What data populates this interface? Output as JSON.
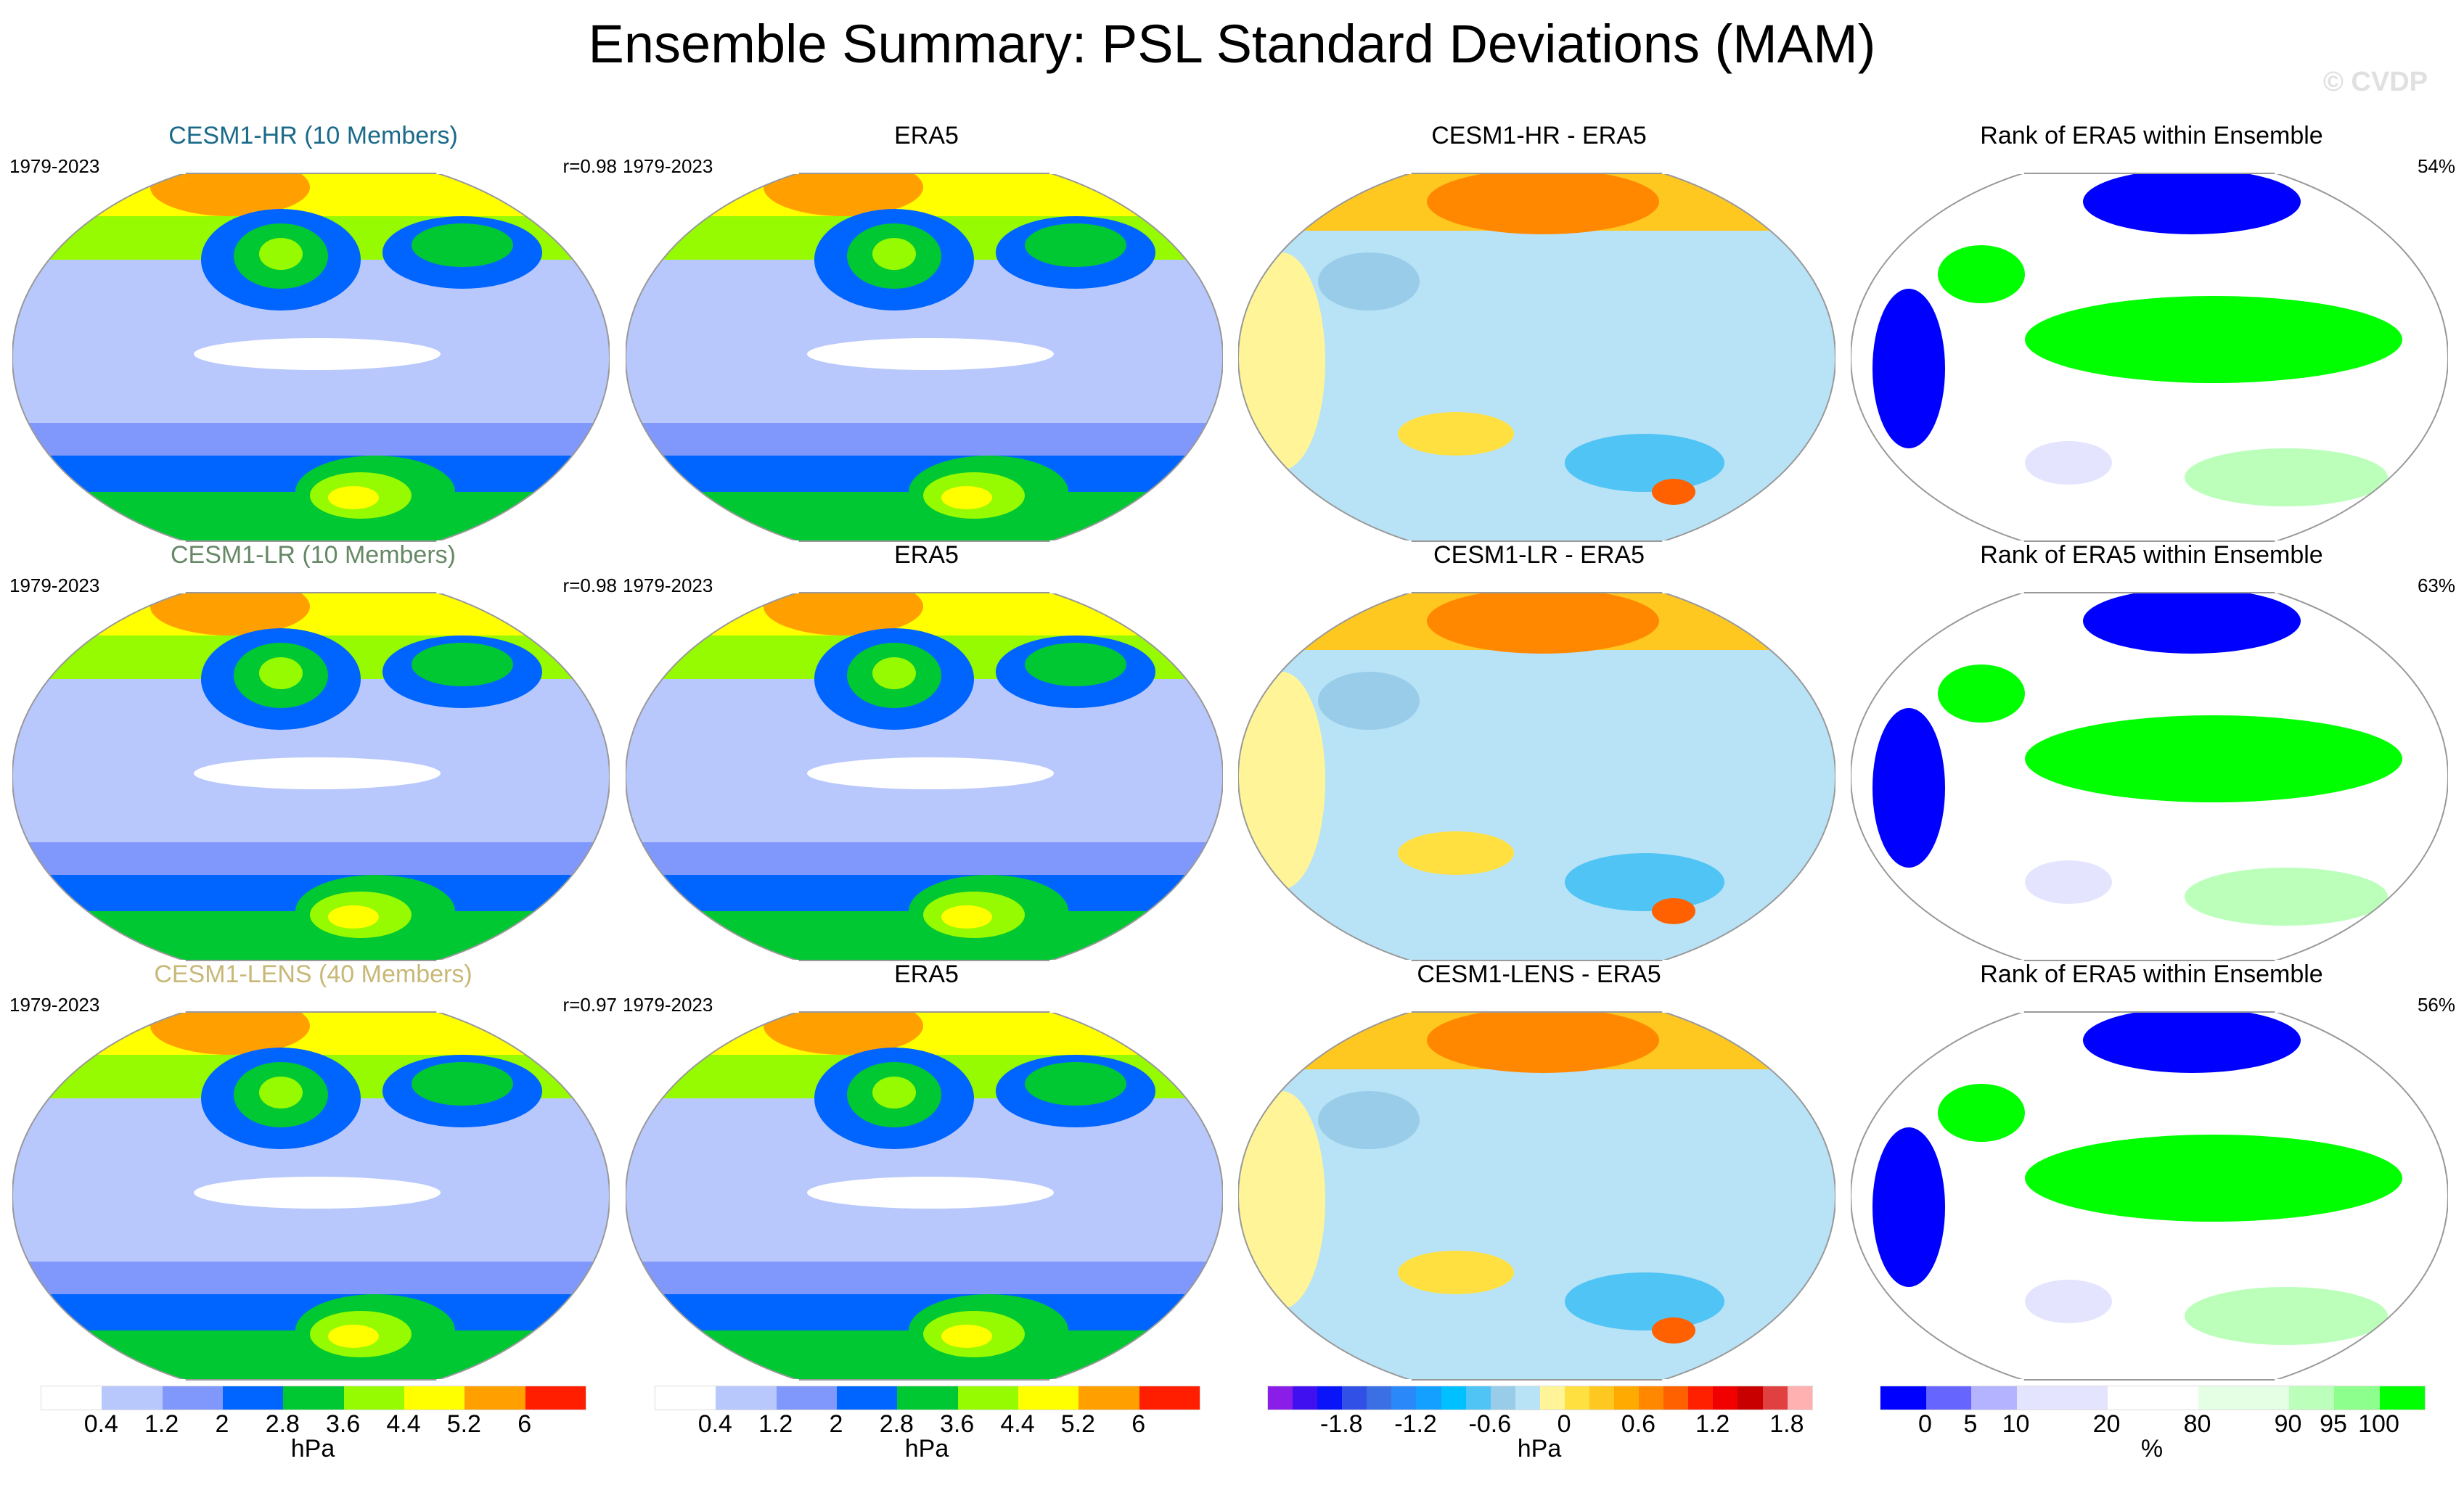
{
  "title": "Ensemble Summary: PSL Standard Deviations (MAM)",
  "watermark": "© CVDP",
  "rows": [
    {
      "model_label": "CESM1-HR (10 Members)",
      "model_color": "#1a6a8a",
      "period": "1979-2023",
      "r": "r=0.98",
      "obs_label": "ERA5",
      "obs_period": "1979-2023",
      "diff_label": "CESM1-HR - ERA5",
      "rank_label": "Rank of ERA5 within Ensemble",
      "rank_pct": "54%"
    },
    {
      "model_label": "CESM1-LR (10 Members)",
      "model_color": "#668866",
      "period": "1979-2023",
      "r": "r=0.98",
      "obs_label": "ERA5",
      "obs_period": "1979-2023",
      "diff_label": "CESM1-LR - ERA5",
      "rank_label": "Rank of ERA5 within Ensemble",
      "rank_pct": "63%"
    },
    {
      "model_label": "CESM1-LENS (40 Members)",
      "model_color": "#c8b878",
      "period": "1979-2023",
      "r": "r=0.97",
      "obs_label": "ERA5",
      "obs_period": "1979-2023",
      "diff_label": "CESM1-LENS - ERA5",
      "rank_label": "Rank of ERA5 within Ensemble",
      "rank_pct": "56%"
    }
  ],
  "chart_data": [
    {
      "type": "heatmap",
      "name": "std-colorbar",
      "units": "hPa",
      "levels": [
        "0.4",
        "1.2",
        "2",
        "2.8",
        "3.6",
        "4.4",
        "5.2",
        "6"
      ],
      "colors": [
        "#ffffff",
        "#b8c8fc",
        "#8098fc",
        "#0064ff",
        "#00c832",
        "#96fa00",
        "#ffff00",
        "#ffa000",
        "#ff1e00"
      ]
    },
    {
      "type": "heatmap",
      "name": "std-colorbar-obs",
      "units": "hPa",
      "levels": [
        "0.4",
        "1.2",
        "2",
        "2.8",
        "3.6",
        "4.4",
        "5.2",
        "6"
      ],
      "colors": [
        "#ffffff",
        "#b8c8fc",
        "#8098fc",
        "#0064ff",
        "#00c832",
        "#96fa00",
        "#ffff00",
        "#ffa000",
        "#ff1e00"
      ]
    },
    {
      "type": "heatmap",
      "name": "diff-colorbar",
      "units": "hPa",
      "levels": [
        "-1.8",
        "-1.2",
        "-0.6",
        "0",
        "0.6",
        "1.2",
        "1.8"
      ],
      "colors": [
        "#8a1ee8",
        "#4010f0",
        "#0a14f8",
        "#3050e6",
        "#3a70e4",
        "#2a88f8",
        "#14a0ff",
        "#00c0ff",
        "#50c4f4",
        "#98cce8",
        "#b8e2f6",
        "#fff598",
        "#ffe040",
        "#ffc820",
        "#ffaa00",
        "#ff8800",
        "#ff6000",
        "#ff2000",
        "#f00000",
        "#c80000",
        "#e04040",
        "#ffb0b0"
      ]
    },
    {
      "type": "heatmap",
      "name": "rank-colorbar",
      "units": "%",
      "levels": [
        "0",
        "5",
        "10",
        "20",
        "80",
        "90",
        "95",
        "100"
      ],
      "colors": [
        "#0000ff",
        "#6666ff",
        "#b3b3ff",
        "#e4e4ff",
        "#ffffff",
        "#e4ffe4",
        "#bbffbb",
        "#8cff8c",
        "#00ff00"
      ],
      "widths": [
        1,
        1,
        1,
        2,
        2,
        2,
        1,
        1,
        1
      ]
    }
  ]
}
